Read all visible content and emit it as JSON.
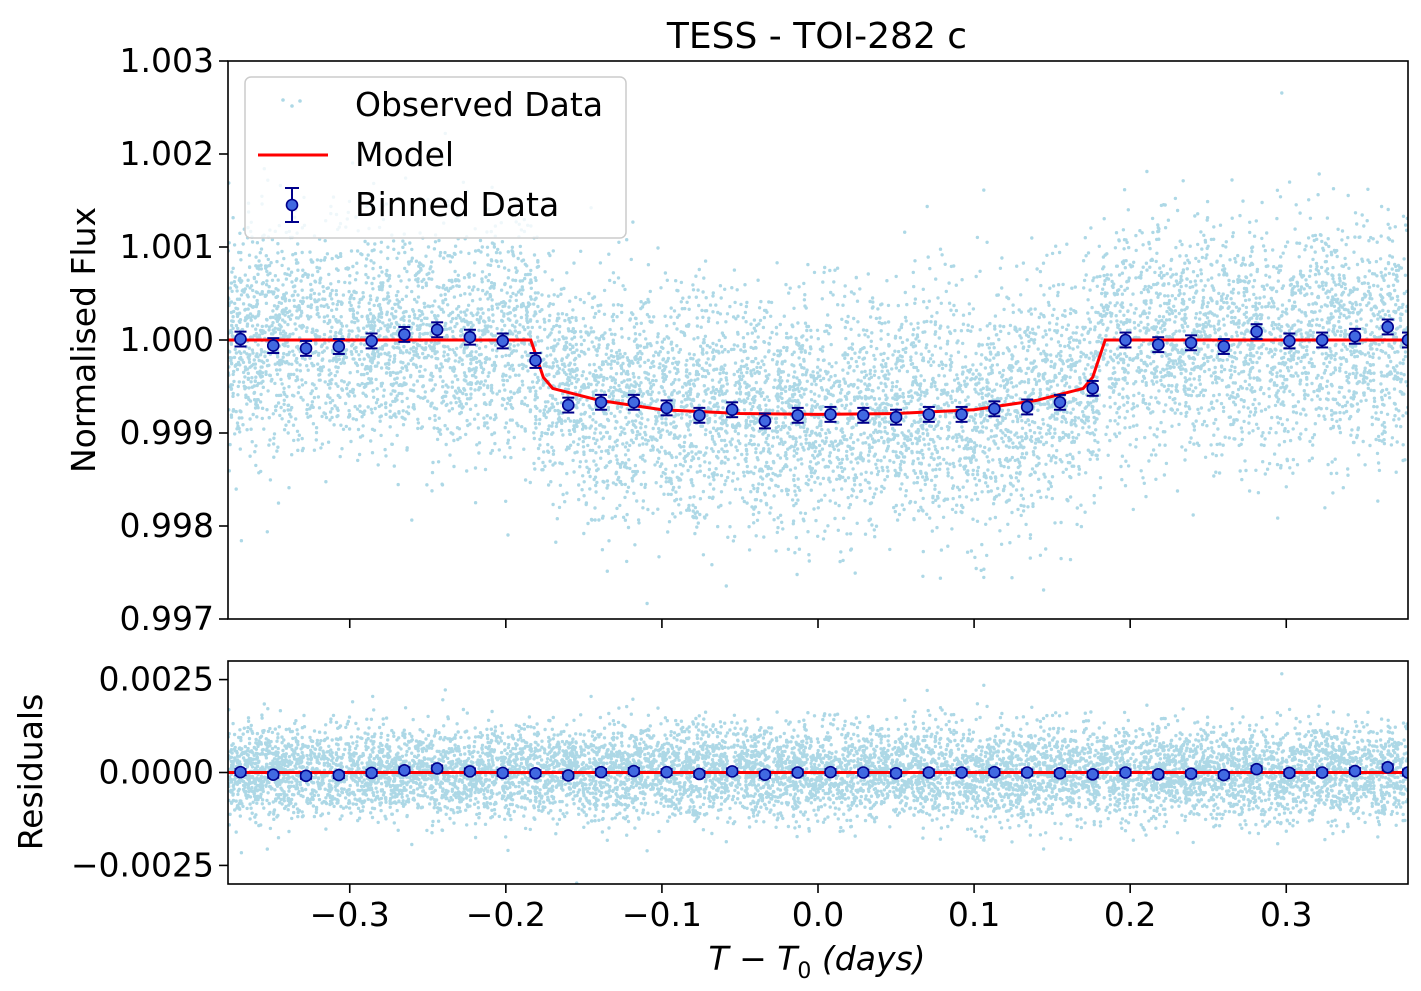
{
  "colors": {
    "observed": "#add8e6",
    "model": "#ff0000",
    "binned_face": "#4169e1",
    "binned_edge": "#00008b"
  },
  "chart_data": [
    {
      "type": "scatter",
      "panel": "top",
      "title": "TESS - TOI-282 c",
      "xlabel": "",
      "ylabel": "Normalised Flux",
      "xlim": [
        -0.378,
        0.378
      ],
      "ylim": [
        0.997,
        1.003
      ],
      "yticks": [
        "1.003",
        "1.002",
        "1.001",
        "1.000",
        "0.999",
        "0.998",
        "0.997"
      ],
      "ytick_values": [
        1.003,
        1.002,
        1.001,
        1.0,
        0.999,
        0.998,
        0.997
      ],
      "xtick_values": [
        -0.3,
        -0.2,
        -0.1,
        0.0,
        0.1,
        0.2,
        0.3
      ],
      "legend": {
        "location": "upper-left",
        "entries": [
          "Observed Data",
          "Model",
          "Binned Data"
        ]
      },
      "model": {
        "x": [
          -0.378,
          -0.184,
          -0.176,
          -0.17,
          -0.14,
          -0.1,
          -0.05,
          0.0,
          0.05,
          0.1,
          0.14,
          0.17,
          0.176,
          0.184,
          0.378
        ],
        "y": [
          1.0,
          1.0,
          0.9996,
          0.99948,
          0.99935,
          0.99925,
          0.99921,
          0.9992,
          0.99921,
          0.99925,
          0.99935,
          0.99948,
          0.9996,
          1.0,
          1.0
        ]
      },
      "binned": {
        "x": [
          -0.37,
          -0.349,
          -0.328,
          -0.307,
          -0.286,
          -0.265,
          -0.244,
          -0.223,
          -0.202,
          -0.181,
          -0.16,
          -0.139,
          -0.118,
          -0.097,
          -0.076,
          -0.055,
          -0.034,
          -0.013,
          0.008,
          0.029,
          0.05,
          0.071,
          0.092,
          0.113,
          0.134,
          0.155,
          0.176,
          0.197,
          0.218,
          0.239,
          0.26,
          0.281,
          0.302,
          0.323,
          0.344,
          0.365,
          0.378
        ],
        "y": [
          1.00001,
          0.99994,
          0.99991,
          0.99993,
          0.99999,
          1.00006,
          1.00011,
          1.00003,
          0.99999,
          0.99978,
          0.9993,
          0.99933,
          0.99933,
          0.99927,
          0.99919,
          0.99925,
          0.99913,
          0.99919,
          0.9992,
          0.99919,
          0.99917,
          0.9992,
          0.9992,
          0.99926,
          0.99928,
          0.99933,
          0.99948,
          1.0,
          0.99995,
          0.99997,
          0.99993,
          1.00009,
          0.99999,
          1.0,
          1.00004,
          1.00014,
          1.0
        ],
        "err": 8e-05
      },
      "observed": {
        "n_points": 9000,
        "scatter_sigma": 0.00062,
        "x_range": [
          -0.378,
          0.378
        ]
      }
    },
    {
      "type": "scatter",
      "panel": "bottom",
      "title": "",
      "xlabel": "T − T₀ (days)",
      "ylabel": "Residuals",
      "xlim": [
        -0.378,
        0.378
      ],
      "ylim": [
        -0.003,
        0.003
      ],
      "yticks": [
        "0.0025",
        "0.0000",
        "−0.0025"
      ],
      "ytick_values": [
        0.0025,
        0.0,
        -0.0025
      ],
      "xticks": [
        "−0.3",
        "−0.2",
        "−0.1",
        "0.0",
        "0.1",
        "0.2",
        "0.3"
      ],
      "xtick_values": [
        -0.3,
        -0.2,
        -0.1,
        0.0,
        0.1,
        0.2,
        0.3
      ],
      "model": {
        "x": [
          -0.378,
          0.378
        ],
        "y": [
          0.0,
          0.0
        ]
      },
      "binned": {
        "y": [
          1e-05,
          -6e-05,
          -9e-05,
          -7e-05,
          -1e-05,
          6e-05,
          0.00011,
          3e-05,
          -1e-05,
          -2e-05,
          -8e-05,
          1e-05,
          4e-05,
          1e-05,
          -4e-05,
          3e-05,
          -6e-05,
          0.0,
          1e-05,
          0.0,
          -2e-05,
          0.0,
          0.0,
          1e-05,
          0.0,
          -2e-05,
          -5e-05,
          0.0,
          -5e-05,
          -3e-05,
          -7e-05,
          9e-05,
          -1e-05,
          0.0,
          4e-05,
          0.00014,
          0.0
        ],
        "err": 8e-05
      },
      "observed": {
        "n_points": 9000,
        "scatter_sigma": 0.00062
      }
    }
  ],
  "title_text": "TESS - TOI-282 c",
  "top_ylabel": "Normalised Flux",
  "bottom_ylabel": "Residuals",
  "xlabel_parts": {
    "T": "T",
    "minus": " − ",
    "T0": "T",
    "sub": "0",
    "unit": " (days)"
  },
  "legend_labels": {
    "observed": "Observed Data",
    "model": "Model",
    "binned": "Binned Data"
  }
}
